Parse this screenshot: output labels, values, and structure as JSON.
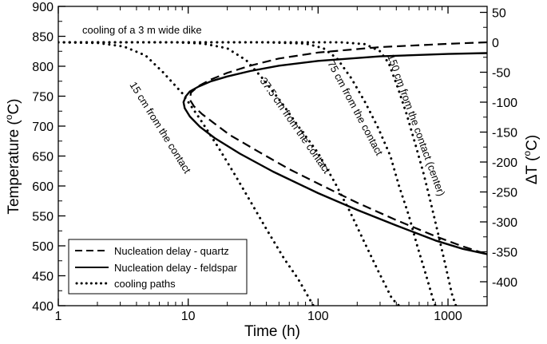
{
  "chart_data": {
    "type": "line",
    "title": "",
    "xlabel": "Time (h)",
    "ylabel": "Temperature (°C)",
    "ylabel_parts": {
      "main": "Temperature (",
      "sup": "o",
      "end": "C)"
    },
    "y2label": "ΔT (°C)",
    "y2label_parts": {
      "main": "ΔT (",
      "sup": "o",
      "end": "C)"
    },
    "x_scale": "log",
    "xlim": [
      1,
      2000
    ],
    "ylim": [
      400,
      900
    ],
    "y2lim": [
      -440,
      60
    ],
    "x_ticks": [
      1,
      10,
      100,
      1000
    ],
    "x_tick_labels": [
      "1",
      "10",
      "100",
      "1000"
    ],
    "y_ticks": [
      400,
      450,
      500,
      550,
      600,
      650,
      700,
      750,
      800,
      850,
      900
    ],
    "y_tick_labels": [
      "400",
      "450",
      "500",
      "550",
      "600",
      "650",
      "700",
      "750",
      "800",
      "850",
      "900"
    ],
    "y2_ticks": [
      -400,
      -350,
      -300,
      -250,
      -200,
      -150,
      -100,
      -50,
      0,
      50
    ],
    "y2_tick_labels": [
      "-400",
      "-350",
      "-300",
      "-250",
      "-200",
      "-150",
      "-100",
      "-50",
      "0",
      "50"
    ],
    "grid": false,
    "legend_position": "bottom-left",
    "series": [
      {
        "name": "Nucleation delay - quartz",
        "style": "dashed",
        "color": "#000000",
        "points": [
          [
            2000,
            840
          ],
          [
            1000,
            837.5
          ],
          [
            300,
            832
          ],
          [
            100,
            823
          ],
          [
            50,
            813
          ],
          [
            30,
            801
          ],
          [
            20,
            789
          ],
          [
            15,
            778
          ],
          [
            12,
            767
          ],
          [
            10.5,
            756
          ],
          [
            10.3,
            744
          ],
          [
            11.1,
            733
          ],
          [
            12.8,
            720
          ],
          [
            16,
            704
          ],
          [
            21,
            685
          ],
          [
            35,
            657
          ],
          [
            60,
            628
          ],
          [
            100,
            604
          ],
          [
            200,
            572
          ],
          [
            400,
            543
          ],
          [
            800,
            516
          ],
          [
            1300,
            499
          ],
          [
            2000,
            486
          ]
        ]
      },
      {
        "name": "Nucleation delay - feldspar",
        "style": "solid",
        "color": "#000000",
        "points": [
          [
            2000,
            822
          ],
          [
            1000,
            820.5
          ],
          [
            300,
            816.5
          ],
          [
            100,
            809
          ],
          [
            50,
            801
          ],
          [
            30,
            792
          ],
          [
            20,
            783
          ],
          [
            15,
            775
          ],
          [
            12,
            766
          ],
          [
            10.3,
            758
          ],
          [
            9.6,
            750
          ],
          [
            9.2,
            740
          ],
          [
            9.4,
            730
          ],
          [
            10.3,
            716
          ],
          [
            12.3,
            699
          ],
          [
            16,
            680
          ],
          [
            25,
            654
          ],
          [
            45,
            624
          ],
          [
            100,
            588
          ],
          [
            200,
            560
          ],
          [
            400,
            534
          ],
          [
            800,
            509
          ],
          [
            1300,
            495
          ],
          [
            2000,
            486
          ]
        ]
      },
      {
        "name": "cooling paths",
        "style": "dotted",
        "color": "#000000",
        "paths": [
          {
            "label": "15 cm from the contact",
            "points": [
              [
                1,
                840
              ],
              [
                2,
                839
              ],
              [
                3.2,
                833
              ],
              [
                4.7,
                818
              ],
              [
                6.4,
                790
              ],
              [
                9,
                755
              ],
              [
                12.5,
                710
              ],
              [
                17,
                665
              ],
              [
                23,
                618
              ],
              [
                30,
                575
              ],
              [
                40,
                528
              ],
              [
                55,
                478
              ],
              [
                70,
                445
              ],
              [
                85,
                413
              ],
              [
                92,
                400
              ]
            ]
          },
          {
            "label": "37.5 cm from the contact",
            "points": [
              [
                1,
                840
              ],
              [
                8,
                840
              ],
              [
                13,
                838
              ],
              [
                20,
                830
              ],
              [
                28,
                810
              ],
              [
                38,
                778
              ],
              [
                52,
                740
              ],
              [
                72,
                697
              ],
              [
                100,
                655
              ],
              [
                135,
                605
              ],
              [
                175,
                558
              ],
              [
                225,
                508
              ],
              [
                290,
                458
              ],
              [
                370,
                412
              ],
              [
                420,
                400
              ]
            ]
          },
          {
            "label": "75 cm from the contact",
            "points": [
              [
                1,
                840
              ],
              [
                40,
                840
              ],
              [
                80,
                838
              ],
              [
                110,
                830
              ],
              [
                140,
                813
              ],
              [
                180,
                780
              ],
              [
                230,
                740
              ],
              [
                290,
                697
              ],
              [
                360,
                650
              ],
              [
                420,
                600
              ],
              [
                500,
                550
              ],
              [
                580,
                500
              ],
              [
                680,
                450
              ],
              [
                780,
                405
              ],
              [
                800,
                400
              ]
            ]
          },
          {
            "label": "150 cm from the contact (center)",
            "points": [
              [
                1,
                840
              ],
              [
                150,
                840
              ],
              [
                230,
                837
              ],
              [
                300,
                825
              ],
              [
                350,
                805
              ],
              [
                410,
                765
              ],
              [
                480,
                720
              ],
              [
                560,
                670
              ],
              [
                650,
                620
              ],
              [
                740,
                570
              ],
              [
                840,
                520
              ],
              [
                950,
                470
              ],
              [
                1070,
                420
              ],
              [
                1150,
                400
              ]
            ]
          }
        ]
      }
    ],
    "annotations": [
      {
        "text": "cooling of a 3 m wide dike"
      },
      {
        "text": "15 cm from the contact"
      },
      {
        "text": "37.5 cm from the contact"
      },
      {
        "text": "75 cm from the contact"
      },
      {
        "text": "150 cm from the contact (center)"
      }
    ],
    "legend": [
      {
        "label": "Nucleation delay - quartz",
        "style": "dashed"
      },
      {
        "label": "Nucleation delay - feldspar",
        "style": "solid"
      },
      {
        "label": "cooling paths",
        "style": "dotted"
      }
    ]
  }
}
